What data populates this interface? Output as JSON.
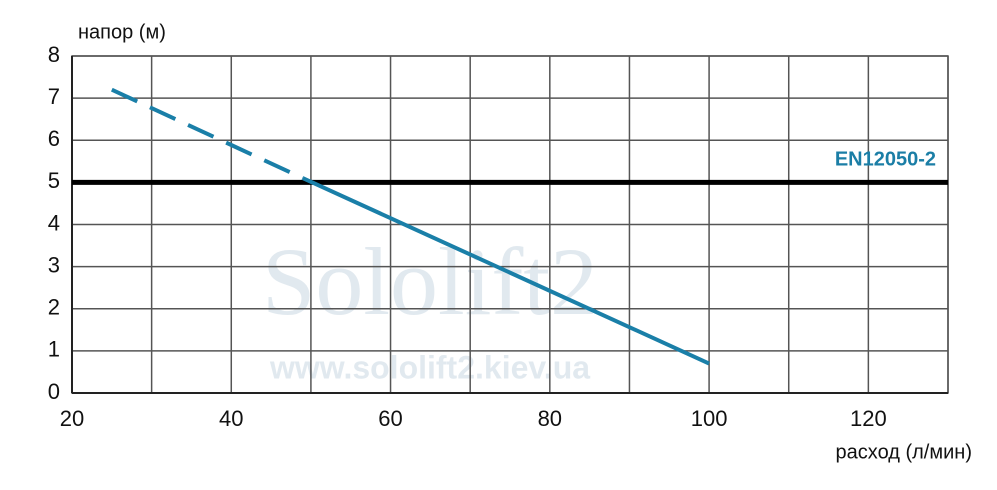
{
  "chart_data": {
    "type": "line",
    "y_label": "напор (м)",
    "x_label": "расход (л/мин)",
    "xlim": [
      20,
      130
    ],
    "ylim": [
      0,
      8
    ],
    "xticks": [
      20,
      40,
      60,
      80,
      100,
      120
    ],
    "x_minor_ticks": [
      30,
      50,
      70,
      90,
      110,
      130
    ],
    "yticks": [
      0,
      1,
      2,
      3,
      4,
      5,
      6,
      7,
      8
    ],
    "grid": true,
    "series": [
      {
        "color": "#1a7fa8",
        "style": "dashed",
        "x": [
          25,
          49
        ],
        "values": [
          7.2,
          5.1
        ]
      },
      {
        "color": "#1a7fa8",
        "style": "solid",
        "x": [
          49,
          100
        ],
        "values": [
          5.1,
          0.7
        ]
      }
    ],
    "reference_line": {
      "value": 5,
      "label": "EN12050-2",
      "color": "#000000",
      "label_color": "#1b7ea6"
    },
    "watermark": [
      "Sololift2",
      "www.sololift2.kiev.ua"
    ]
  }
}
